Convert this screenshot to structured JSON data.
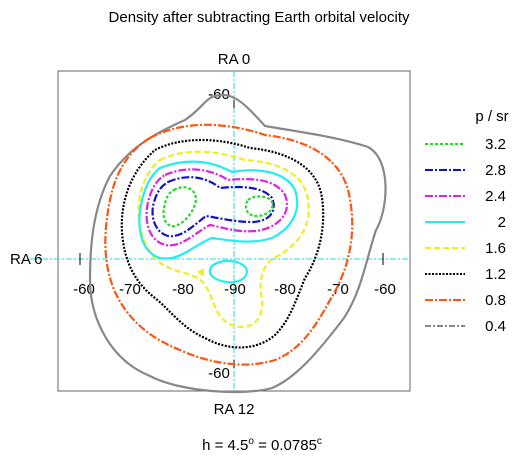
{
  "chart_data": {
    "type": "contour",
    "title": "Density after subtracting Earth orbital velocity",
    "footer": {
      "prefix": "h = 4.5",
      "deg": "o",
      "mid": " = 0.0785",
      "rad": "c"
    },
    "ra_labels": {
      "top": "RA 0",
      "left": "RA 6",
      "bottom": "RA 12"
    },
    "dec_labels": {
      "top": "-60",
      "bottom": "-60",
      "left_outer": "-60",
      "right_outer": "-60",
      "h1": "-70",
      "h2": "-80",
      "h3": "-90",
      "h4": "-80",
      "h5": "-70"
    },
    "legend_title": "p / sr",
    "levels": [
      {
        "value": "3.2",
        "color": "#22dd22",
        "dash": "3,2"
      },
      {
        "value": "2.8",
        "color": "#1111cc",
        "dash": "8,2,2,2"
      },
      {
        "value": "2.4",
        "color": "#dd22dd",
        "dash": "8,2,2,2"
      },
      {
        "value": "2",
        "color": "#22eeee",
        "dash": ""
      },
      {
        "value": "1.6",
        "color": "#eeee22",
        "dash": "6,3"
      },
      {
        "value": "1.2",
        "color": "#000000",
        "dash": "2,1.5"
      },
      {
        "value": "0.8",
        "color": "#ff5511",
        "dash": "8,2,2,2"
      },
      {
        "value": "0.4",
        "color": "#888888",
        "dash": "6,2,2,2"
      }
    ]
  }
}
